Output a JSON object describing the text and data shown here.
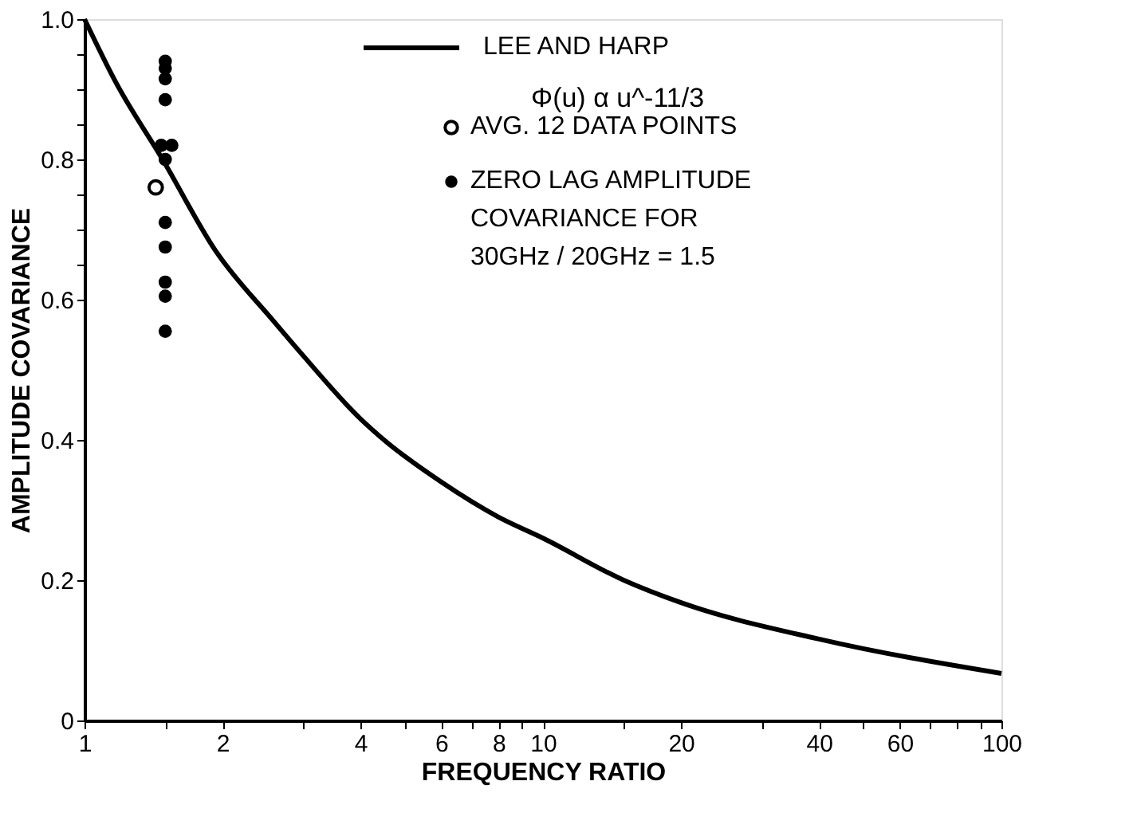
{
  "chart_data": {
    "type": "line",
    "xlabel": "FREQUENCY RATIO",
    "ylabel": "AMPLITUDE COVARIANCE",
    "log": "x",
    "xlim": [
      1,
      100
    ],
    "ylim": [
      0,
      1
    ],
    "xticks": [
      1,
      {
        "value": 1.5,
        "label": null
      },
      2,
      {
        "value": 3,
        "label": null
      },
      4,
      {
        "value": 5,
        "label": null
      },
      6,
      {
        "value": 7,
        "label": null
      },
      8,
      {
        "value": 9,
        "label": null
      },
      10,
      {
        "value": 15,
        "label": null
      },
      20,
      {
        "value": 30,
        "label": null
      },
      40,
      {
        "value": 50,
        "label": null
      },
      60,
      {
        "value": 70,
        "label": null
      },
      {
        "value": 80,
        "label": null
      },
      {
        "value": 90,
        "label": null
      },
      100
    ],
    "yticks": [
      0,
      0.2,
      0.4,
      0.6,
      {
        "value": 0.65,
        "label": null
      },
      {
        "value": 0.7,
        "label": null
      },
      {
        "value": 0.75,
        "label": null
      },
      0.8,
      {
        "value": 0.85,
        "label": null
      },
      {
        "value": 0.9,
        "label": null
      },
      {
        "value": 0.95,
        "label": null
      },
      {
        "value": 1,
        "label": "1.0"
      }
    ],
    "grid": false,
    "legend": "top right",
    "annotations": [
      "Φ(u) α u^-11/3"
    ],
    "series": [
      {
        "name": "LEE AND HARP",
        "color": "#000000",
        "line_style": "solid",
        "marker": "none",
        "x": [
          1,
          1.17,
          1.48,
          1.93,
          2.58,
          3,
          4,
          4.5,
          6,
          8,
          10,
          15,
          20,
          40,
          100
        ],
        "values": [
          1.0,
          0.91,
          0.8,
          0.67,
          0.57,
          0.52,
          0.43,
          0.4,
          0.34,
          0.29,
          0.26,
          0.2,
          0.168,
          0.116,
          0.067
        ]
      },
      {
        "name": "AVG. 12 DATA POINTS",
        "type": "scatter",
        "color": "#000000",
        "marker": "circle",
        "x": [
          1.43
        ],
        "values": [
          0.76
        ]
      },
      {
        "name": "ZERO LAG AMPLITUDE\nCOVARIANCE FOR\n30GHz / 20GHz = 1.5",
        "type": "scatter",
        "color": "#000000",
        "marker": "circle",
        "x": [
          1.5,
          1.5,
          1.5,
          1.5,
          1.47,
          1.55,
          1.5,
          1.5,
          1.5,
          1.5,
          1.5,
          1.5
        ],
        "values": [
          0.94,
          0.93,
          0.915,
          0.885,
          0.82,
          0.82,
          0.8,
          0.71,
          0.675,
          0.625,
          0.605,
          0.555
        ]
      }
    ]
  }
}
